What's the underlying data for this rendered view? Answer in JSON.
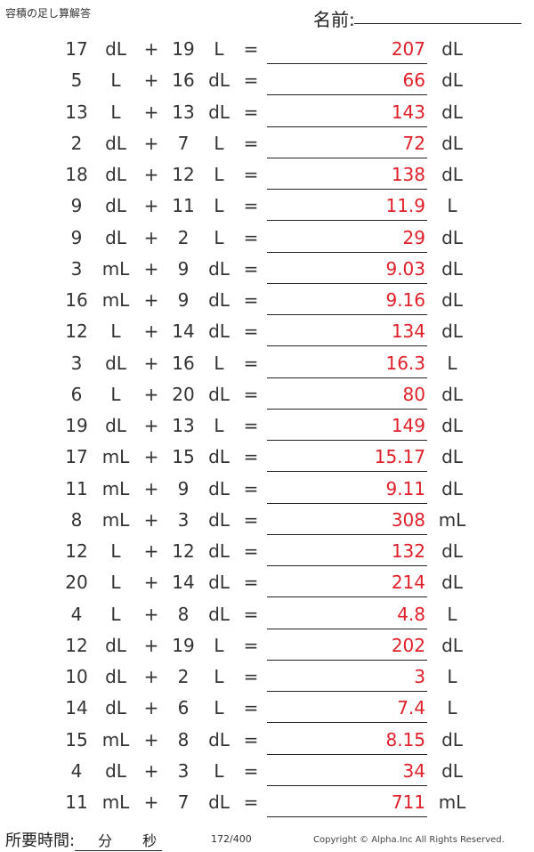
{
  "header": {
    "title": "容積の足し算解答",
    "name_label": "名前:"
  },
  "rows": [
    {
      "a": "17",
      "ua": "dL",
      "b": "19",
      "ub": "L",
      "ans": "207",
      "ru": "dL"
    },
    {
      "a": "5",
      "ua": "L",
      "b": "16",
      "ub": "dL",
      "ans": "66",
      "ru": "dL"
    },
    {
      "a": "13",
      "ua": "L",
      "b": "13",
      "ub": "dL",
      "ans": "143",
      "ru": "dL"
    },
    {
      "a": "2",
      "ua": "dL",
      "b": "7",
      "ub": "L",
      "ans": "72",
      "ru": "dL"
    },
    {
      "a": "18",
      "ua": "dL",
      "b": "12",
      "ub": "L",
      "ans": "138",
      "ru": "dL"
    },
    {
      "a": "9",
      "ua": "dL",
      "b": "11",
      "ub": "L",
      "ans": "11.9",
      "ru": "L"
    },
    {
      "a": "9",
      "ua": "dL",
      "b": "2",
      "ub": "L",
      "ans": "29",
      "ru": "dL"
    },
    {
      "a": "3",
      "ua": "mL",
      "b": "9",
      "ub": "dL",
      "ans": "9.03",
      "ru": "dL"
    },
    {
      "a": "16",
      "ua": "mL",
      "b": "9",
      "ub": "dL",
      "ans": "9.16",
      "ru": "dL"
    },
    {
      "a": "12",
      "ua": "L",
      "b": "14",
      "ub": "dL",
      "ans": "134",
      "ru": "dL"
    },
    {
      "a": "3",
      "ua": "dL",
      "b": "16",
      "ub": "L",
      "ans": "16.3",
      "ru": "L"
    },
    {
      "a": "6",
      "ua": "L",
      "b": "20",
      "ub": "dL",
      "ans": "80",
      "ru": "dL"
    },
    {
      "a": "19",
      "ua": "dL",
      "b": "13",
      "ub": "L",
      "ans": "149",
      "ru": "dL"
    },
    {
      "a": "17",
      "ua": "mL",
      "b": "15",
      "ub": "dL",
      "ans": "15.17",
      "ru": "dL"
    },
    {
      "a": "11",
      "ua": "mL",
      "b": "9",
      "ub": "dL",
      "ans": "9.11",
      "ru": "dL"
    },
    {
      "a": "8",
      "ua": "mL",
      "b": "3",
      "ub": "dL",
      "ans": "308",
      "ru": "mL"
    },
    {
      "a": "12",
      "ua": "L",
      "b": "12",
      "ub": "dL",
      "ans": "132",
      "ru": "dL"
    },
    {
      "a": "20",
      "ua": "L",
      "b": "14",
      "ub": "dL",
      "ans": "214",
      "ru": "dL"
    },
    {
      "a": "4",
      "ua": "L",
      "b": "8",
      "ub": "dL",
      "ans": "4.8",
      "ru": "L"
    },
    {
      "a": "12",
      "ua": "dL",
      "b": "19",
      "ub": "L",
      "ans": "202",
      "ru": "dL"
    },
    {
      "a": "10",
      "ua": "dL",
      "b": "2",
      "ub": "L",
      "ans": "3",
      "ru": "L"
    },
    {
      "a": "14",
      "ua": "dL",
      "b": "6",
      "ub": "L",
      "ans": "7.4",
      "ru": "L"
    },
    {
      "a": "15",
      "ua": "mL",
      "b": "8",
      "ub": "dL",
      "ans": "8.15",
      "ru": "dL"
    },
    {
      "a": "4",
      "ua": "dL",
      "b": "3",
      "ub": "L",
      "ans": "34",
      "ru": "dL"
    },
    {
      "a": "11",
      "ua": "mL",
      "b": "7",
      "ub": "dL",
      "ans": "711",
      "ru": "mL"
    }
  ],
  "symbols": {
    "plus": "+",
    "equals": "="
  },
  "footer": {
    "time_label": "所要時間:",
    "minutes_label": "分",
    "seconds_label": "秒",
    "page": "172/400",
    "copyright": "Copyright © Alpha.Inc All Rights Reserved."
  },
  "colors": {
    "answer": "#e0202a",
    "text": "#333333"
  }
}
